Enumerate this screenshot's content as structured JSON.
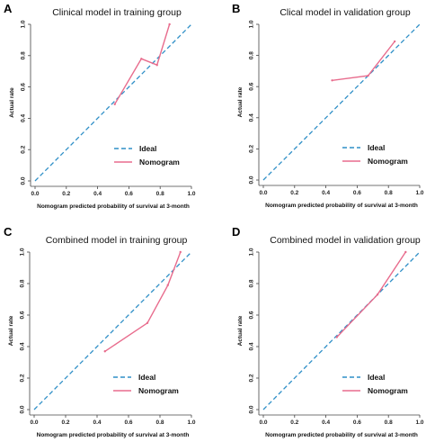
{
  "chart_data": [
    {
      "type": "line",
      "panel_label": "A",
      "title": "Clinical model in training group",
      "xlabel": "Nomogram predicted probability of survival at 3-month",
      "ylabel": "Actual rate",
      "xlim": [
        0,
        1
      ],
      "ylim": [
        0,
        1
      ],
      "xticks": [
        "0.0",
        "0.2",
        "0.4",
        "0.6",
        "0.8",
        "1.0"
      ],
      "yticks": [
        "0.0",
        "0.2",
        "0.4",
        "0.6",
        "0.8",
        "1.0"
      ],
      "grid": false,
      "legend_position": "bottom-right",
      "series": [
        {
          "name": "Ideal",
          "color": "#2f8fc7",
          "dash": true,
          "x": [
            0,
            1
          ],
          "y": [
            0,
            1
          ]
        },
        {
          "name": "Nomogram",
          "color": "#e86c8d",
          "dash": false,
          "x": [
            0.51,
            0.68,
            0.78,
            0.86
          ],
          "y": [
            0.49,
            0.78,
            0.74,
            1.0
          ]
        }
      ]
    },
    {
      "type": "line",
      "panel_label": "B",
      "title": "Clical model in validation group",
      "xlabel": "Nomogram predicted probability of survival at 3-month",
      "ylabel": "Actual rate",
      "xlim": [
        0,
        1
      ],
      "ylim": [
        0,
        1
      ],
      "xticks": [
        "0.0",
        "0.2",
        "0.4",
        "0.6",
        "0.8",
        "1.0"
      ],
      "yticks": [
        "0.0",
        "0.2",
        "0.4",
        "0.6",
        "0.8",
        "1.0"
      ],
      "grid": false,
      "legend_position": "bottom-right",
      "series": [
        {
          "name": "Ideal",
          "color": "#2f8fc7",
          "dash": true,
          "x": [
            0,
            1
          ],
          "y": [
            0,
            1
          ]
        },
        {
          "name": "Nomogram",
          "color": "#e86c8d",
          "dash": false,
          "x": [
            0.44,
            0.67,
            0.84
          ],
          "y": [
            0.64,
            0.67,
            0.89
          ]
        }
      ]
    },
    {
      "type": "line",
      "panel_label": "C",
      "title": "Combined model in training group",
      "xlabel": "Nomogram predicted probability of survival at 3-month",
      "ylabel": "Actual rate",
      "xlim": [
        0,
        1
      ],
      "ylim": [
        0,
        1
      ],
      "xticks": [
        "0.0",
        "0.2",
        "0.4",
        "0.6",
        "0.8",
        "1.0"
      ],
      "yticks": [
        "0.0",
        "0.2",
        "0.4",
        "0.6",
        "0.8",
        "1.0"
      ],
      "grid": false,
      "legend_position": "bottom-right",
      "series": [
        {
          "name": "Ideal",
          "color": "#2f8fc7",
          "dash": true,
          "x": [
            0,
            1
          ],
          "y": [
            0,
            1
          ]
        },
        {
          "name": "Nomogram",
          "color": "#e86c8d",
          "dash": false,
          "x": [
            0.45,
            0.72,
            0.85,
            0.93
          ],
          "y": [
            0.37,
            0.55,
            0.79,
            1.0
          ]
        }
      ]
    },
    {
      "type": "line",
      "panel_label": "D",
      "title": "Combined model in validation group",
      "xlabel": "Nomogram predicted probability of survival at 3-month",
      "ylabel": "Actual rate",
      "xlim": [
        0,
        1
      ],
      "ylim": [
        0,
        1
      ],
      "xticks": [
        "0.0",
        "0.2",
        "0.4",
        "0.6",
        "0.8",
        "1.0"
      ],
      "yticks": [
        "0.0",
        "0.2",
        "0.4",
        "0.6",
        "0.8",
        "1.0"
      ],
      "grid": false,
      "legend_position": "bottom-right",
      "series": [
        {
          "name": "Ideal",
          "color": "#2f8fc7",
          "dash": true,
          "x": [
            0,
            1
          ],
          "y": [
            0,
            1
          ]
        },
        {
          "name": "Nomogram",
          "color": "#e86c8d",
          "dash": false,
          "x": [
            0.47,
            0.73,
            0.91
          ],
          "y": [
            0.46,
            0.73,
            1.0
          ]
        }
      ]
    }
  ]
}
